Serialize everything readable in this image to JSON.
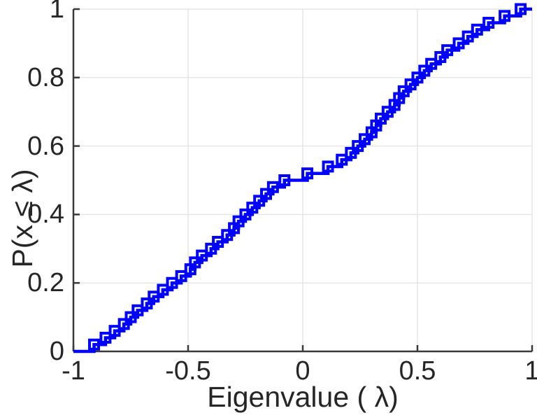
{
  "figure": {
    "background": "#FFFFFF"
  },
  "chart_data": {
    "type": "line",
    "subtype": "empirical-cdf-staircase",
    "title": "",
    "xlabel": "Eigenvalue ( λ)",
    "ylabel": "P(x ≤ λ)",
    "xlim": [
      -1,
      1
    ],
    "ylim": [
      0,
      1
    ],
    "xticks": [
      -1,
      -0.5,
      0,
      0.5,
      1
    ],
    "xtick_labels": [
      "-1",
      "-0.5",
      "0",
      "0.5",
      "1"
    ],
    "yticks": [
      0,
      0.2,
      0.4,
      0.6,
      0.8,
      1
    ],
    "ytick_labels": [
      "0",
      "0.2",
      "0.4",
      "0.6",
      "0.8",
      "1"
    ],
    "grid": true,
    "legend_position": "none",
    "axis_color": "#3A3A3A",
    "grid_color": "#E6E6E6",
    "tick_direction": "in",
    "series": [
      {
        "name": "Empirical CDF of eigenvalues",
        "color": "#0000FF",
        "marker": "open-square",
        "line_style": "stairs",
        "n": 50,
        "step_height": 0.02,
        "x_sorted": [
          -0.91,
          -0.86,
          -0.82,
          -0.78,
          -0.75,
          -0.72,
          -0.68,
          -0.65,
          -0.61,
          -0.57,
          -0.53,
          -0.49,
          -0.47,
          -0.44,
          -0.4,
          -0.37,
          -0.33,
          -0.3,
          -0.28,
          -0.25,
          -0.22,
          -0.19,
          -0.16,
          -0.13,
          -0.08,
          0.02,
          0.11,
          0.17,
          0.21,
          0.24,
          0.27,
          0.3,
          0.32,
          0.34,
          0.37,
          0.4,
          0.42,
          0.44,
          0.47,
          0.5,
          0.53,
          0.56,
          0.6,
          0.63,
          0.68,
          0.72,
          0.76,
          0.81,
          0.88,
          0.95
        ],
        "y_cumulative": [
          0.02,
          0.04,
          0.06,
          0.08,
          0.1,
          0.12,
          0.14,
          0.16,
          0.18,
          0.2,
          0.22,
          0.24,
          0.26,
          0.28,
          0.3,
          0.32,
          0.34,
          0.36,
          0.38,
          0.4,
          0.42,
          0.44,
          0.46,
          0.48,
          0.5,
          0.52,
          0.54,
          0.56,
          0.58,
          0.6,
          0.62,
          0.64,
          0.66,
          0.68,
          0.7,
          0.72,
          0.74,
          0.76,
          0.78,
          0.8,
          0.82,
          0.84,
          0.86,
          0.88,
          0.9,
          0.92,
          0.94,
          0.96,
          0.98,
          1.0
        ]
      }
    ]
  }
}
